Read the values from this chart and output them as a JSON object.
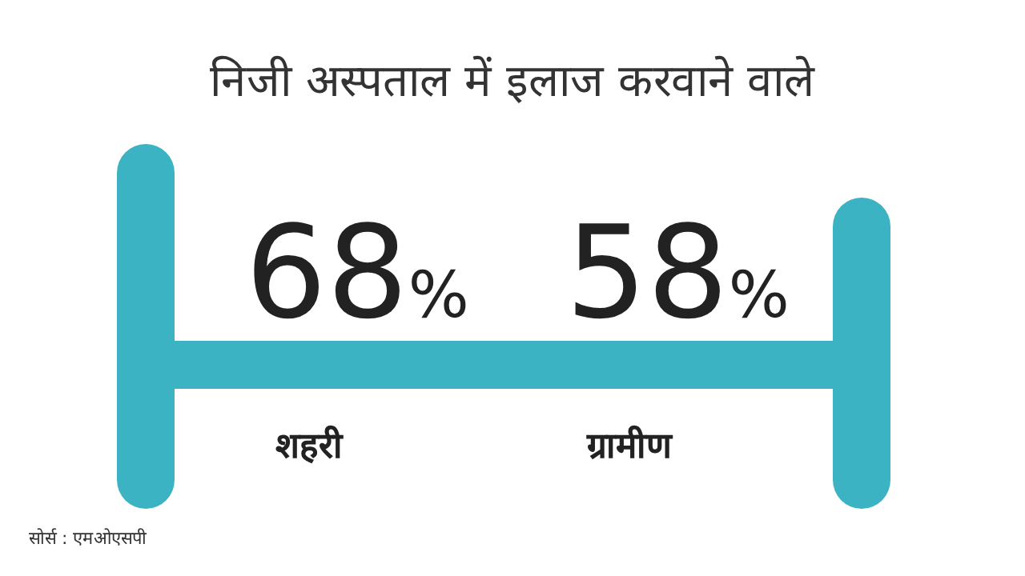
{
  "chart_data": {
    "type": "other",
    "title": "निजी अस्पताल में इलाज करवाने वाले",
    "categories": [
      "शहरी",
      "ग्रामीण"
    ],
    "values": [
      68,
      58
    ],
    "value_labels": [
      "68%",
      "58%"
    ],
    "color": "#3bb3c3",
    "annotations": [
      "सोर्स : एमओएसपी"
    ]
  }
}
